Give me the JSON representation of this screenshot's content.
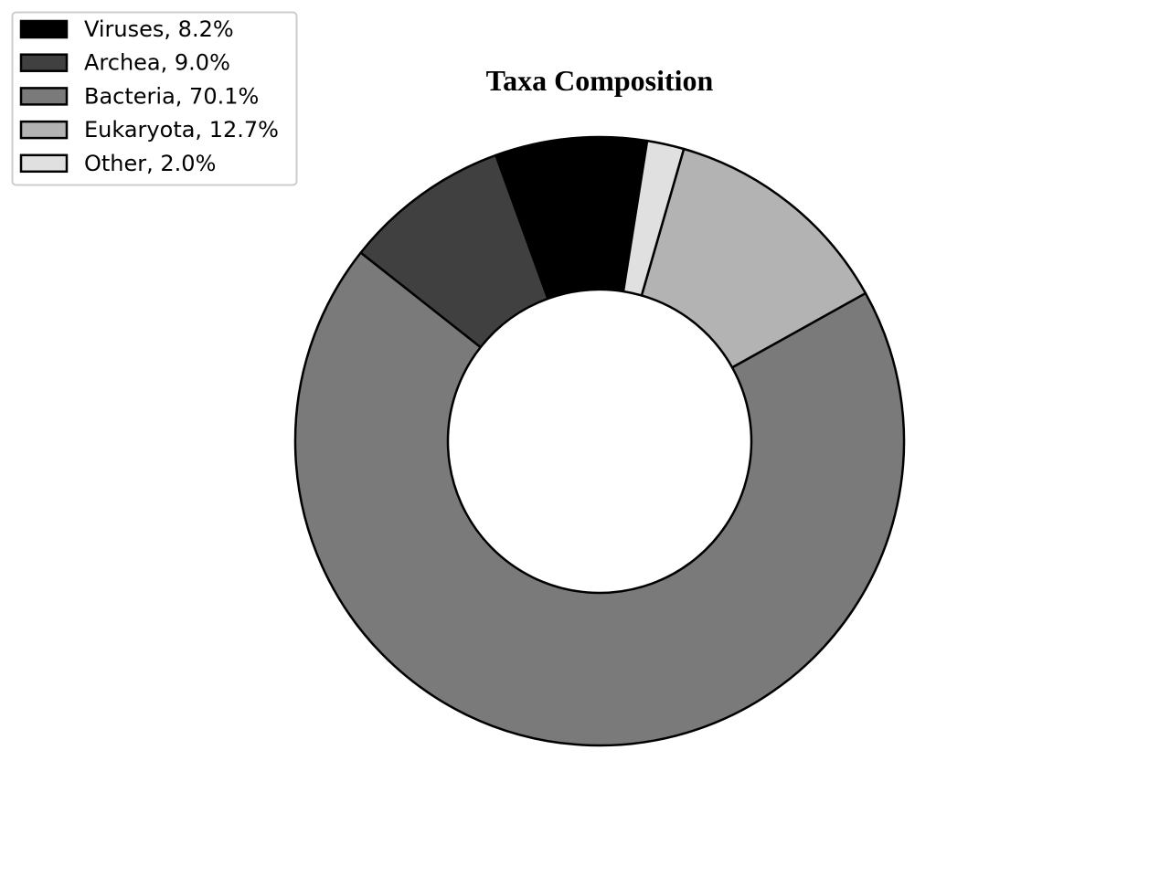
{
  "chart_data": {
    "type": "pie",
    "variant": "donut",
    "title": "Taxa Composition",
    "legend_position": "top-left",
    "start_angle_deg": 81,
    "direction": "counterclockwise",
    "slices": [
      {
        "label": "Viruses",
        "value": 8.2,
        "legend_text": "Viruses, 8.2%",
        "color": "#000000"
      },
      {
        "label": "Archea",
        "value": 9.0,
        "legend_text": "Archea, 9.0%",
        "color": "#404040"
      },
      {
        "label": "Bacteria",
        "value": 70.1,
        "legend_text": "Bacteria, 70.1%",
        "color": "#7a7a7a"
      },
      {
        "label": "Eukaryota",
        "value": 12.7,
        "legend_text": "Eukaryota, 12.7%",
        "color": "#b3b3b3"
      },
      {
        "label": "Other",
        "value": 2.0,
        "legend_text": "Other, 2.0%",
        "color": "#e0e0e0"
      }
    ]
  }
}
